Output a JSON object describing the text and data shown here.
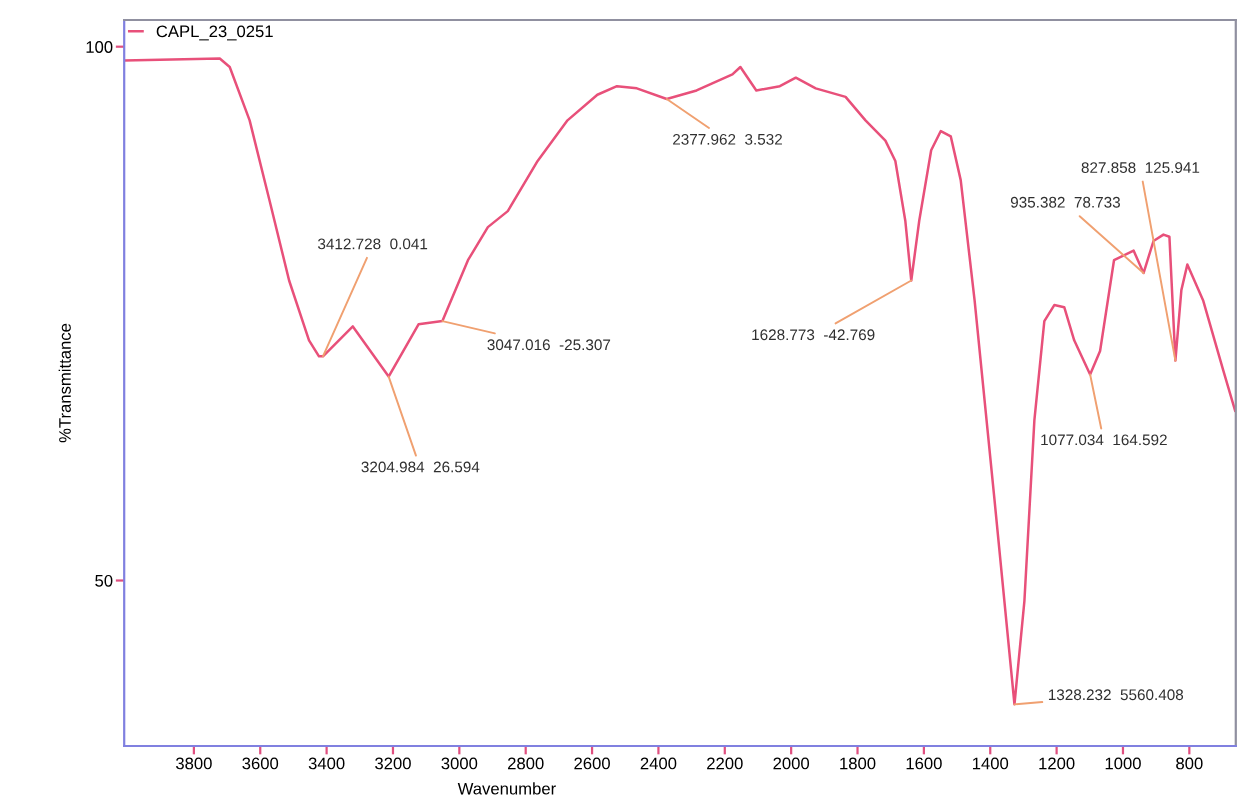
{
  "chart_data": {
    "type": "line",
    "xlabel": "Wavenumber",
    "ylabel": "%Transmittance",
    "xlim": [
      4010,
      660
    ],
    "ylim": [
      34.5,
      102.5
    ],
    "xticks": [
      3800,
      3600,
      3400,
      3200,
      3000,
      2800,
      2600,
      2400,
      2200,
      2000,
      1800,
      1600,
      1400,
      1200,
      1000,
      800
    ],
    "yticks": [
      50,
      100
    ],
    "grid": false,
    "legend": "top left",
    "marker": "none",
    "line_style": "solid",
    "series": [
      {
        "name": "CAPL_23_0251",
        "color": "#e8507a",
        "x": [
          4010,
          3722,
          3692,
          3632,
          3572,
          3513,
          3453,
          3423,
          3411,
          3321,
          3213,
          3123,
          3051,
          2974,
          2914,
          2854,
          2764,
          2674,
          2584,
          2525,
          2465,
          2375,
          2285,
          2177,
          2153,
          2105,
          2034,
          1986,
          1926,
          1836,
          1776,
          1716,
          1686,
          1656,
          1638,
          1614,
          1578,
          1549,
          1519,
          1489,
          1447,
          1387,
          1327,
          1297,
          1267,
          1237,
          1207,
          1177,
          1147,
          1099,
          1069,
          1027,
          968,
          938,
          908,
          878,
          860,
          842,
          824,
          806,
          758,
          698,
          662
        ],
        "values": [
          98.7,
          98.9,
          98.1,
          93.1,
          85.6,
          78.1,
          72.5,
          71.0,
          71.0,
          73.8,
          69.1,
          74.0,
          74.3,
          80.0,
          83.1,
          84.6,
          89.3,
          93.1,
          95.5,
          96.3,
          96.1,
          95.1,
          95.9,
          97.4,
          98.1,
          95.9,
          96.3,
          97.1,
          96.1,
          95.3,
          93.1,
          91.2,
          89.3,
          83.7,
          78.1,
          83.7,
          90.3,
          92.1,
          91.6,
          87.5,
          76.2,
          57.5,
          38.4,
          48.1,
          65.0,
          74.3,
          75.8,
          75.6,
          72.5,
          69.3,
          71.5,
          80.0,
          80.9,
          78.8,
          81.8,
          82.4,
          82.2,
          70.6,
          77.2,
          79.6,
          76.2,
          69.7,
          65.9
        ]
      }
    ],
    "annotations": [
      {
        "text": "3412.728  0.041",
        "x": 3411,
        "y": 71.0
      },
      {
        "text": "3204.984  26.594",
        "x": 3213,
        "y": 69.1
      },
      {
        "text": "3047.016  -25.307",
        "x": 3051,
        "y": 74.3
      },
      {
        "text": "2377.962  3.532",
        "x": 2375,
        "y": 95.1
      },
      {
        "text": "1628.773  -42.769",
        "x": 1638,
        "y": 78.1
      },
      {
        "text": "1328.232  5560.408",
        "x": 1327,
        "y": 38.4
      },
      {
        "text": "1077.034  164.592",
        "x": 1099,
        "y": 69.3
      },
      {
        "text": "935.382  78.733",
        "x": 938,
        "y": 78.8
      },
      {
        "text": "827.858  125.941",
        "x": 842,
        "y": 70.6
      }
    ]
  }
}
